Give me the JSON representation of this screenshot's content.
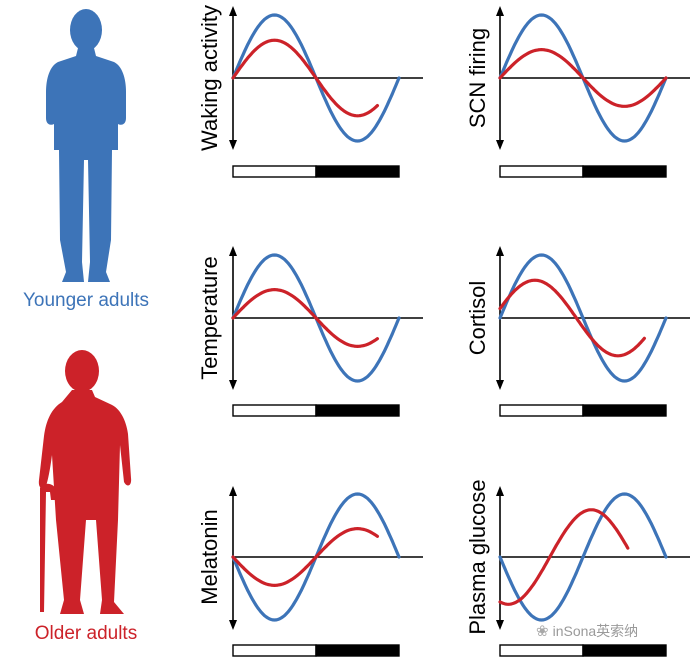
{
  "colors": {
    "younger": "#3d74b8",
    "older": "#cc2229",
    "axis": "#000000",
    "watermark": "#9a9a9a"
  },
  "legend": {
    "younger_label": "Younger adults",
    "older_label": "Older adults"
  },
  "watermark": {
    "icon": "wechat-bubbles-icon",
    "text": "inSona英索纳"
  },
  "light_dark_bar": [
    "light",
    "dark"
  ],
  "chart_data": [
    {
      "type": "line",
      "ylabel": "Waking activity",
      "series": [
        {
          "name": "Younger adults",
          "color": "#3d74b8",
          "amplitude": 1.0,
          "phase_shift": 0.0,
          "cycle_fraction": 1.0,
          "offset": 0.0
        },
        {
          "name": "Older adults",
          "color": "#cc2229",
          "amplitude": 0.6,
          "phase_shift": 0.0,
          "cycle_fraction": 0.87,
          "offset": 0.0
        }
      ]
    },
    {
      "type": "line",
      "ylabel": "SCN firing",
      "series": [
        {
          "name": "Younger adults",
          "color": "#3d74b8",
          "amplitude": 1.0,
          "phase_shift": 0.0,
          "cycle_fraction": 1.0,
          "offset": 0.0
        },
        {
          "name": "Older adults",
          "color": "#cc2229",
          "amplitude": 0.45,
          "phase_shift": 0.0,
          "cycle_fraction": 1.0,
          "offset": 0.0
        }
      ]
    },
    {
      "type": "line",
      "ylabel": "Temperature",
      "series": [
        {
          "name": "Younger adults",
          "color": "#3d74b8",
          "amplitude": 1.0,
          "phase_shift": 0.0,
          "cycle_fraction": 1.0,
          "offset": 0.0
        },
        {
          "name": "Older adults",
          "color": "#cc2229",
          "amplitude": 0.45,
          "phase_shift": 0.0,
          "cycle_fraction": 0.87,
          "offset": 0.0
        }
      ]
    },
    {
      "type": "line",
      "ylabel": "Cortisol",
      "series": [
        {
          "name": "Younger adults",
          "color": "#3d74b8",
          "amplitude": 1.0,
          "phase_shift": 0.0,
          "cycle_fraction": 1.0,
          "offset": 0.0
        },
        {
          "name": "Older adults",
          "color": "#cc2229",
          "amplitude": 0.6,
          "phase_shift": -0.04,
          "cycle_fraction": 0.87,
          "offset": 0.0
        }
      ]
    },
    {
      "type": "line",
      "ylabel": "Melatonin",
      "series": [
        {
          "name": "Younger adults",
          "color": "#3d74b8",
          "amplitude": -1.0,
          "phase_shift": 0.0,
          "cycle_fraction": 1.0,
          "offset": 0.0
        },
        {
          "name": "Older adults",
          "color": "#cc2229",
          "amplitude": -0.45,
          "phase_shift": 0.0,
          "cycle_fraction": 0.87,
          "offset": 0.0
        }
      ]
    },
    {
      "type": "line",
      "ylabel": "Plasma glucose",
      "series": [
        {
          "name": "Younger adults",
          "color": "#3d74b8",
          "amplitude": -1.0,
          "phase_shift": 0.0,
          "cycle_fraction": 1.0,
          "offset": 0.0
        },
        {
          "name": "Older adults",
          "color": "#cc2229",
          "amplitude": -0.75,
          "phase_shift": -0.2,
          "cycle_fraction": 0.77,
          "offset": 0.0
        }
      ]
    }
  ]
}
